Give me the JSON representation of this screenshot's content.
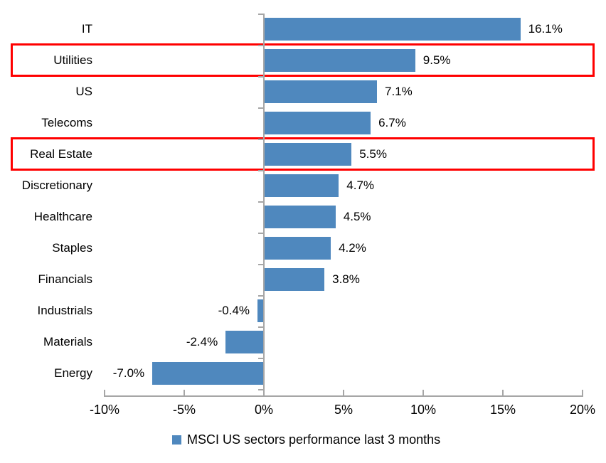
{
  "chart_data": {
    "type": "bar",
    "orientation": "horizontal",
    "title": "",
    "categories": [
      "IT",
      "Utilities",
      "US",
      "Telecoms",
      "Real Estate",
      "Discretionary",
      "Healthcare",
      "Staples",
      "Financials",
      "Industrials",
      "Materials",
      "Energy"
    ],
    "values": [
      16.1,
      9.5,
      7.1,
      6.7,
      5.5,
      4.7,
      4.5,
      4.2,
      3.8,
      -0.4,
      -2.4,
      -7.0
    ],
    "value_labels": [
      "16.1%",
      "9.5%",
      "7.1%",
      "6.7%",
      "5.5%",
      "4.7%",
      "4.5%",
      "4.2%",
      "3.8%",
      "-0.4%",
      "-2.4%",
      "-7.0%"
    ],
    "highlighted_categories": [
      "Utilities",
      "Real Estate"
    ],
    "x_tick_values": [
      -10,
      -5,
      0,
      5,
      10,
      15,
      20
    ],
    "x_tick_labels": [
      "-10%",
      "-5%",
      "0%",
      "5%",
      "10%",
      "15%",
      "20%"
    ],
    "xlim": [
      -10,
      20
    ],
    "grid": false,
    "legend_position": "bottom-center",
    "legend_label": "MSCI US sectors performance last 3 months",
    "bar_color": "#4F88BE",
    "highlight_border_color": "#FF0000",
    "axis_color": "#A6A6A6",
    "text_color": "#000000"
  }
}
